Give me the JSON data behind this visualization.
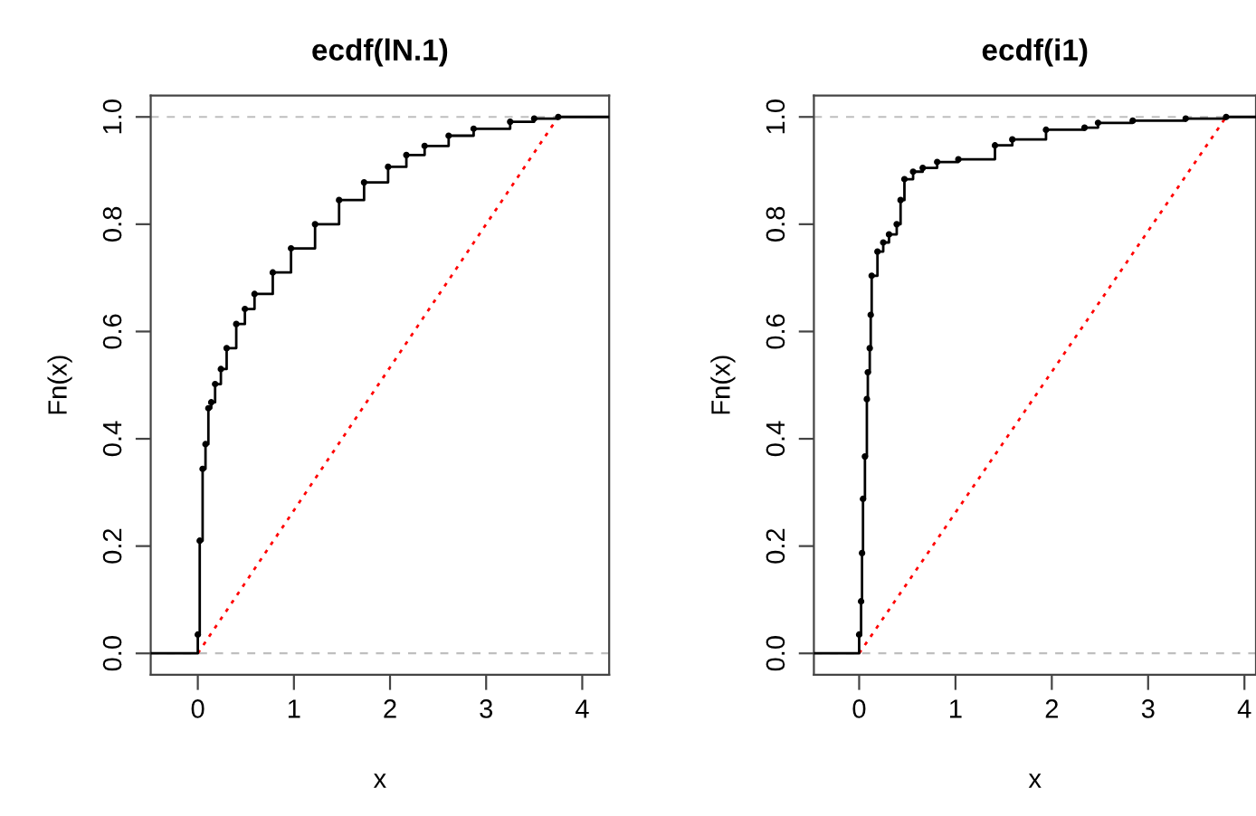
{
  "chart_data": [
    {
      "type": "step",
      "title": "ecdf(lN.1)",
      "xlabel": "x",
      "ylabel": "Fn(x)",
      "xlim": [
        -0.49,
        4.28
      ],
      "ylim": [
        -0.04,
        1.04
      ],
      "xticks": [
        0,
        1,
        2,
        3,
        4
      ],
      "yticks": [
        {
          "value": 0,
          "label": "0.0"
        },
        {
          "value": 0.2,
          "label": "0.2"
        },
        {
          "value": 0.4,
          "label": "0.4"
        },
        {
          "value": 0.6,
          "label": "0.6"
        },
        {
          "value": 0.8,
          "label": "0.8"
        },
        {
          "value": 1,
          "label": "1.0"
        }
      ],
      "grid": false,
      "legend": false,
      "marker": "circle",
      "ref_lines": [
        {
          "axis": "y",
          "value": 0,
          "color": "#bebebe",
          "line_style": "dashed"
        },
        {
          "axis": "y",
          "value": 1,
          "color": "#bebebe",
          "line_style": "dashed"
        }
      ],
      "series": [
        {
          "color": "#000000",
          "x": [
            -0.49,
            0.0,
            0.02,
            0.05,
            0.08,
            0.11,
            0.14,
            0.18,
            0.24,
            0.3,
            0.4,
            0.49,
            0.59,
            0.78,
            0.97,
            1.22,
            1.47,
            1.73,
            1.98,
            2.17,
            2.36,
            2.61,
            2.87,
            3.25,
            3.5,
            3.75,
            4.28
          ],
          "values": [
            0,
            0.035,
            0.21,
            0.344,
            0.39,
            0.457,
            0.468,
            0.502,
            0.53,
            0.569,
            0.614,
            0.642,
            0.67,
            0.71,
            0.755,
            0.8,
            0.845,
            0.878,
            0.907,
            0.929,
            0.946,
            0.965,
            0.978,
            0.991,
            0.997,
            1.0,
            1.0
          ]
        },
        {
          "type": "line",
          "color": "#ff0000",
          "line_style": "dotted",
          "marker": "none",
          "x": [
            0,
            3.75
          ],
          "values": [
            0,
            1
          ]
        }
      ]
    },
    {
      "type": "step",
      "title": "ecdf(i1)",
      "xlabel": "x",
      "ylabel": "Fn(x)",
      "xlim": [
        -0.47,
        4.12
      ],
      "ylim": [
        -0.04,
        1.04
      ],
      "xticks": [
        0,
        1,
        2,
        3,
        4
      ],
      "yticks": [
        {
          "value": 0,
          "label": "0.0"
        },
        {
          "value": 0.2,
          "label": "0.2"
        },
        {
          "value": 0.4,
          "label": "0.4"
        },
        {
          "value": 0.6,
          "label": "0.6"
        },
        {
          "value": 0.8,
          "label": "0.8"
        },
        {
          "value": 1,
          "label": "1.0"
        }
      ],
      "grid": false,
      "legend": false,
      "marker": "circle",
      "ref_lines": [
        {
          "axis": "y",
          "value": 0,
          "color": "#bebebe",
          "line_style": "dashed"
        },
        {
          "axis": "y",
          "value": 1,
          "color": "#bebebe",
          "line_style": "dashed"
        }
      ],
      "series": [
        {
          "color": "#000000",
          "x": [
            -0.47,
            0.0,
            0.02,
            0.03,
            0.04,
            0.06,
            0.08,
            0.09,
            0.11,
            0.12,
            0.13,
            0.19,
            0.25,
            0.31,
            0.39,
            0.43,
            0.47,
            0.56,
            0.66,
            0.81,
            1.03,
            1.41,
            1.59,
            1.94,
            2.34,
            2.48,
            2.84,
            3.39,
            3.81,
            4.12
          ],
          "values": [
            0,
            0.035,
            0.097,
            0.187,
            0.288,
            0.367,
            0.474,
            0.524,
            0.569,
            0.631,
            0.704,
            0.749,
            0.766,
            0.781,
            0.8,
            0.845,
            0.884,
            0.898,
            0.905,
            0.916,
            0.921,
            0.947,
            0.958,
            0.976,
            0.98,
            0.989,
            0.993,
            0.997,
            1.0,
            1.0
          ]
        },
        {
          "type": "line",
          "color": "#ff0000",
          "line_style": "dotted",
          "marker": "none",
          "x": [
            0,
            3.81
          ],
          "values": [
            0,
            1
          ]
        }
      ]
    }
  ]
}
